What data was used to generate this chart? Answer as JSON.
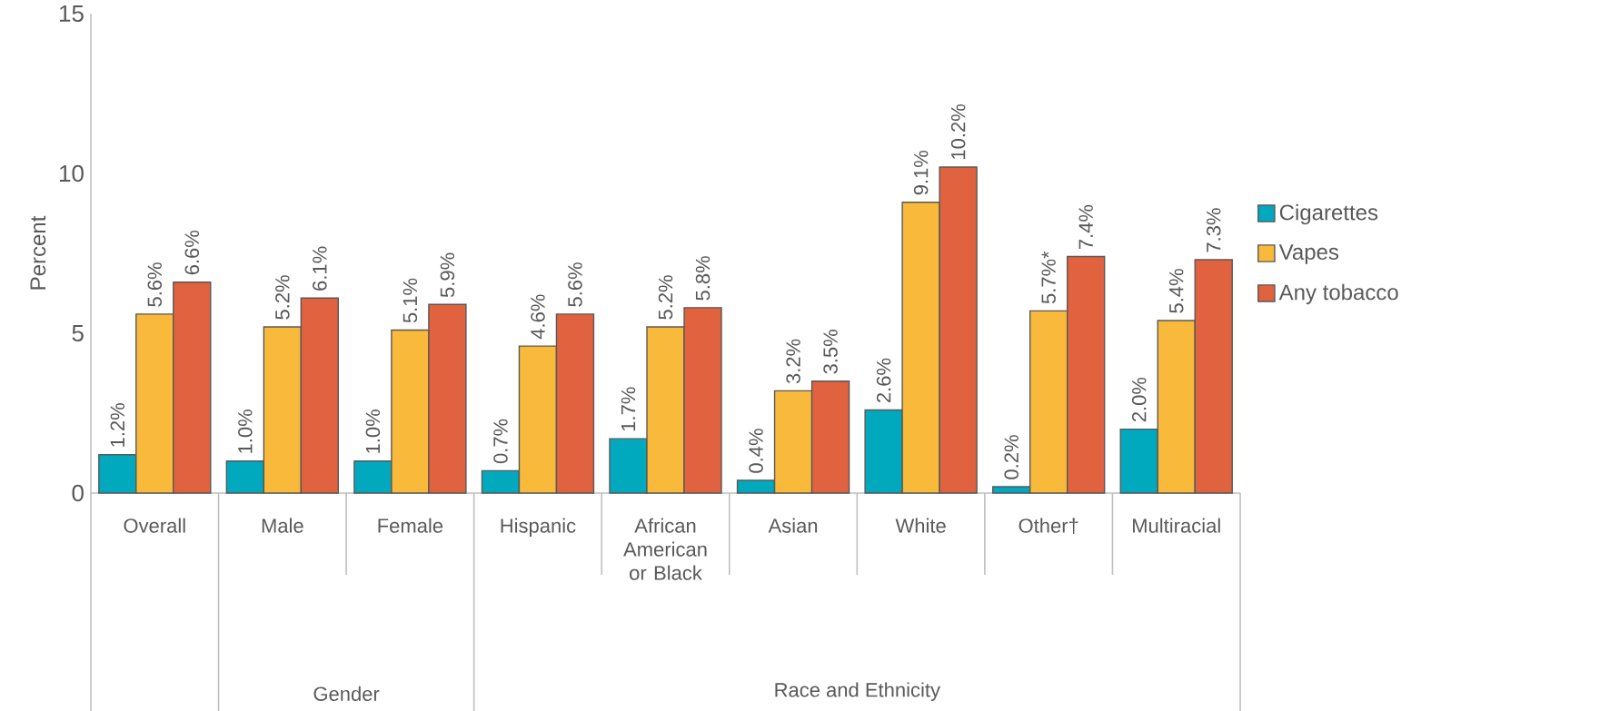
{
  "chart_data": {
    "type": "bar",
    "ylabel": "Percent",
    "categories": [
      "Overall",
      "Male",
      "Female",
      "Hispanic",
      "African American or Black",
      "Asian",
      "White",
      "Other†",
      "Multiracial"
    ],
    "series": [
      {
        "name": "Cigarettes",
        "color": "#00a9bd",
        "values": [
          1.2,
          1.0,
          1.0,
          0.7,
          1.7,
          0.4,
          2.6,
          0.2,
          2.0
        ],
        "value_labels": [
          "1.2%",
          "1.0%",
          "1.0%",
          "0.7%",
          "1.7%",
          "0.4%",
          "2.6%",
          "0.2%",
          "2.0%"
        ]
      },
      {
        "name": "Vapes",
        "color": "#f9b93a",
        "values": [
          5.6,
          5.2,
          5.1,
          4.6,
          5.2,
          3.2,
          9.1,
          5.7,
          5.4
        ],
        "value_labels": [
          "5.6%",
          "5.2%",
          "5.1%",
          "4.6%",
          "5.2%",
          "3.2%",
          "9.1%",
          "5.7%*",
          "5.4%"
        ]
      },
      {
        "name": "Any tobacco",
        "color": "#e0623f",
        "values": [
          6.6,
          6.1,
          5.9,
          5.6,
          5.8,
          3.5,
          10.2,
          7.4,
          7.3
        ],
        "value_labels": [
          "6.6%",
          "6.1%",
          "5.9%",
          "5.6%",
          "5.8%",
          "3.5%",
          "10.2%",
          "7.4%",
          "7.3%"
        ]
      }
    ],
    "ylim": [
      0,
      15
    ],
    "yticks": [
      0,
      5,
      10,
      15
    ],
    "legend": "right",
    "annotations": [
      "Gender",
      "Race and Ethnicity"
    ]
  }
}
